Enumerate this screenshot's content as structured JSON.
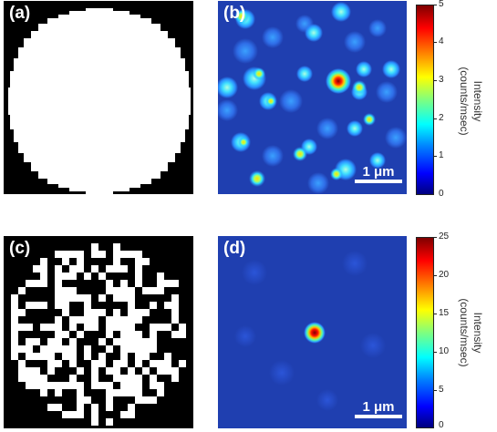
{
  "panels": {
    "a": {
      "label": "(a)"
    },
    "b": {
      "label": "(b)",
      "scalebar": "1 μm"
    },
    "c": {
      "label": "(c)"
    },
    "d": {
      "label": "(d)",
      "scalebar": "1 μm"
    }
  },
  "colorbars": {
    "top": {
      "ticks": [
        "5",
        "4",
        "3",
        "2",
        "1",
        "0"
      ],
      "title_line1": "Intensity",
      "title_line2": "(counts/msec)"
    },
    "bottom": {
      "ticks": [
        "25",
        "20",
        "15",
        "10",
        "5",
        "0"
      ],
      "title_line1": "Intensity",
      "title_line2": "(counts/msec)"
    }
  },
  "colors": {
    "map_background": "#1f3fb0",
    "mask_white": "#ffffff",
    "mask_black": "#000000",
    "jet_scale": [
      "#00007f",
      "#0000ff",
      "#007fff",
      "#00ffff",
      "#7fff7f",
      "#ffff00",
      "#ff7f00",
      "#ff0000",
      "#7f0000"
    ]
  }
}
